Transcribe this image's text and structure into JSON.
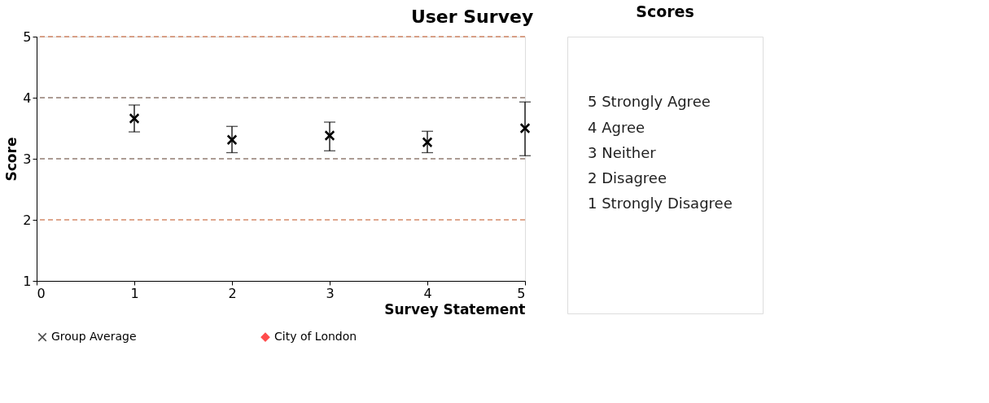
{
  "chart_data": [
    {
      "type": "scatter",
      "title": "User Survey",
      "xlabel": "Survey Statement",
      "ylabel": "Score",
      "x": [
        1,
        2,
        3,
        4,
        5
      ],
      "series": [
        {
          "name": "Group Average",
          "color": "#000000",
          "marker": "cross",
          "values": [
            3.66,
            3.31,
            3.38,
            3.27,
            3.5
          ],
          "errors": [
            [
              3.44,
              3.88
            ],
            [
              3.1,
              3.53
            ],
            [
              3.13,
              3.6
            ],
            [
              3.1,
              3.45
            ],
            [
              3.05,
              3.93
            ]
          ]
        },
        {
          "name": "City of London",
          "color": "#ff0000",
          "marker": "diamond",
          "values": [
            null,
            null,
            null,
            null,
            null
          ]
        }
      ],
      "xlim": [
        0,
        5
      ],
      "xticks": [
        0,
        1,
        2,
        3,
        4,
        5
      ],
      "ylim": [
        1,
        5
      ],
      "yticks": [
        1,
        2,
        3,
        4,
        5
      ],
      "ref_lines": [
        {
          "axis": "y",
          "value": 2,
          "color": "#c0501e",
          "line_style": "dashed"
        },
        {
          "axis": "y",
          "value": 3,
          "color": "#5a3a2a",
          "line_style": "dashed"
        },
        {
          "axis": "y",
          "value": 4,
          "color": "#5a3a2a",
          "line_style": "dashed"
        },
        {
          "axis": "y",
          "value": 5,
          "color": "#c0501e",
          "line_style": "dashed"
        }
      ],
      "grid": false,
      "legend": "bottom"
    },
    {
      "type": "other",
      "title": "Scores",
      "annotations": [
        "5 Strongly Agree",
        "4 Agree",
        "3 Neither",
        "2 Disagree",
        "1 Strongly Disagree"
      ]
    }
  ]
}
